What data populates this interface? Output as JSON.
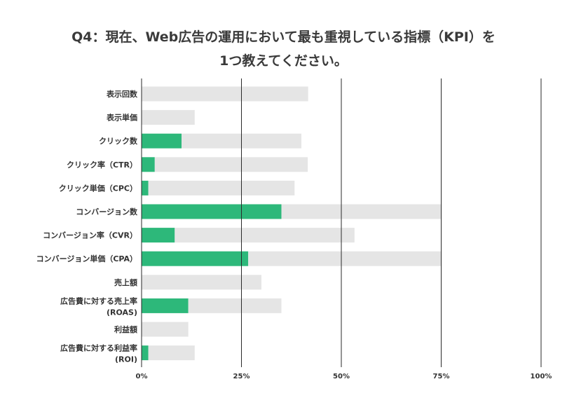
{
  "title": {
    "line1": "Q4：現在、Web広告の運用において最も重視している指標（KPI）を",
    "line2": "1つ教えてください。"
  },
  "chart_data": {
    "type": "bar",
    "orientation": "horizontal",
    "stacked": true,
    "categories": [
      [
        "表示回数"
      ],
      [
        "表示単価"
      ],
      [
        "クリック数"
      ],
      [
        "クリック率（CTR）"
      ],
      [
        "クリック単価（CPC）"
      ],
      [
        "コンバージョン数"
      ],
      [
        "コンバージョン率（CVR）"
      ],
      [
        "コンバージョン単価（CPA）"
      ],
      [
        "売上額"
      ],
      [
        "広告費に対する売上率",
        "(ROAS)"
      ],
      [
        "利益額"
      ],
      [
        "広告費に対する利益率",
        "(ROI)"
      ]
    ],
    "series": [
      {
        "values": [
          0,
          0,
          10,
          3.3,
          1.7,
          35,
          8.3,
          26.7,
          0,
          11.7,
          0,
          1.7
        ]
      },
      {
        "values": [
          41.7,
          13.3,
          30,
          38.3,
          36.6,
          40,
          45,
          48.3,
          30,
          23.3,
          11.7,
          11.6
        ]
      }
    ],
    "colors": {
      "highlight": "#2db87a",
      "rest": "#e5e5e5",
      "grid": "#2a2a2a"
    },
    "xlim": [
      0,
      100
    ],
    "xticks": [
      "0%",
      "25%",
      "50%",
      "75%",
      "100%"
    ],
    "grid": true,
    "legend": "none"
  }
}
